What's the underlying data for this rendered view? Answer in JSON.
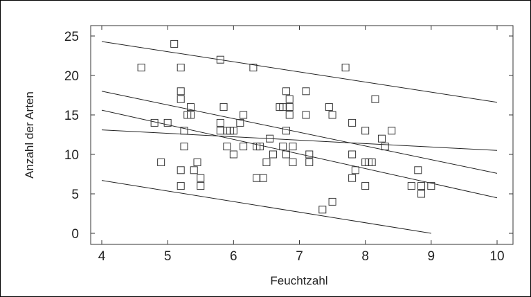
{
  "chart_data": {
    "type": "scatter",
    "xlabel": "Feuchtzahl",
    "ylabel": "Anzahl der Arten",
    "xlim": [
      4,
      10
    ],
    "ylim": [
      0,
      25
    ],
    "xticks": [
      4,
      5,
      6,
      7,
      8,
      9,
      10
    ],
    "yticks": [
      0,
      5,
      10,
      15,
      20,
      25
    ],
    "grid": false,
    "legend": "none",
    "marker": "open-square",
    "points": [
      [
        4.6,
        21
      ],
      [
        4.8,
        14
      ],
      [
        4.9,
        9
      ],
      [
        5.0,
        14
      ],
      [
        5.1,
        24
      ],
      [
        5.2,
        21
      ],
      [
        5.2,
        18
      ],
      [
        5.2,
        17
      ],
      [
        5.2,
        8
      ],
      [
        5.2,
        6
      ],
      [
        5.25,
        13
      ],
      [
        5.25,
        11
      ],
      [
        5.3,
        15
      ],
      [
        5.35,
        16
      ],
      [
        5.35,
        15
      ],
      [
        5.4,
        8
      ],
      [
        5.45,
        9
      ],
      [
        5.5,
        7
      ],
      [
        5.5,
        6
      ],
      [
        5.8,
        22
      ],
      [
        5.8,
        14
      ],
      [
        5.8,
        13
      ],
      [
        5.85,
        16
      ],
      [
        5.9,
        13
      ],
      [
        5.9,
        11
      ],
      [
        5.95,
        13
      ],
      [
        6.0,
        10
      ],
      [
        6.0,
        13
      ],
      [
        6.1,
        14
      ],
      [
        6.15,
        11
      ],
      [
        6.15,
        15
      ],
      [
        6.3,
        21
      ],
      [
        6.35,
        11
      ],
      [
        6.35,
        7
      ],
      [
        6.4,
        11
      ],
      [
        6.45,
        7
      ],
      [
        6.5,
        9
      ],
      [
        6.55,
        12
      ],
      [
        6.6,
        10
      ],
      [
        6.7,
        16
      ],
      [
        6.75,
        16
      ],
      [
        6.75,
        11
      ],
      [
        6.8,
        18
      ],
      [
        6.8,
        13
      ],
      [
        6.8,
        10
      ],
      [
        6.85,
        17
      ],
      [
        6.85,
        16
      ],
      [
        6.85,
        15
      ],
      [
        6.9,
        11
      ],
      [
        6.9,
        9
      ],
      [
        7.1,
        18
      ],
      [
        7.1,
        15
      ],
      [
        7.15,
        10
      ],
      [
        7.15,
        9
      ],
      [
        7.35,
        3
      ],
      [
        7.45,
        16
      ],
      [
        7.5,
        15
      ],
      [
        7.5,
        4
      ],
      [
        7.7,
        21
      ],
      [
        7.8,
        14
      ],
      [
        7.8,
        10
      ],
      [
        7.8,
        7
      ],
      [
        7.85,
        8
      ],
      [
        8.0,
        13
      ],
      [
        8.0,
        9
      ],
      [
        8.0,
        6
      ],
      [
        8.05,
        9
      ],
      [
        8.1,
        9
      ],
      [
        8.15,
        17
      ],
      [
        8.25,
        12
      ],
      [
        8.3,
        11
      ],
      [
        8.4,
        13
      ],
      [
        8.7,
        6
      ],
      [
        8.8,
        8
      ],
      [
        8.85,
        6
      ],
      [
        8.85,
        5
      ],
      [
        9.0,
        6
      ]
    ],
    "lines": [
      {
        "role": "upper-prediction",
        "from": [
          4,
          24.3
        ],
        "to": [
          10,
          16.6
        ]
      },
      {
        "role": "upper-confidence",
        "from": [
          4,
          18.0
        ],
        "to": [
          10,
          7.6
        ]
      },
      {
        "role": "regression",
        "from": [
          4,
          15.6
        ],
        "to": [
          10,
          4.5
        ]
      },
      {
        "role": "lower-confidence",
        "from": [
          4,
          13.1
        ],
        "to": [
          10,
          10.5
        ]
      },
      {
        "role": "lower-prediction",
        "from": [
          4,
          6.7
        ],
        "to": [
          9.0,
          0.0
        ]
      }
    ]
  }
}
